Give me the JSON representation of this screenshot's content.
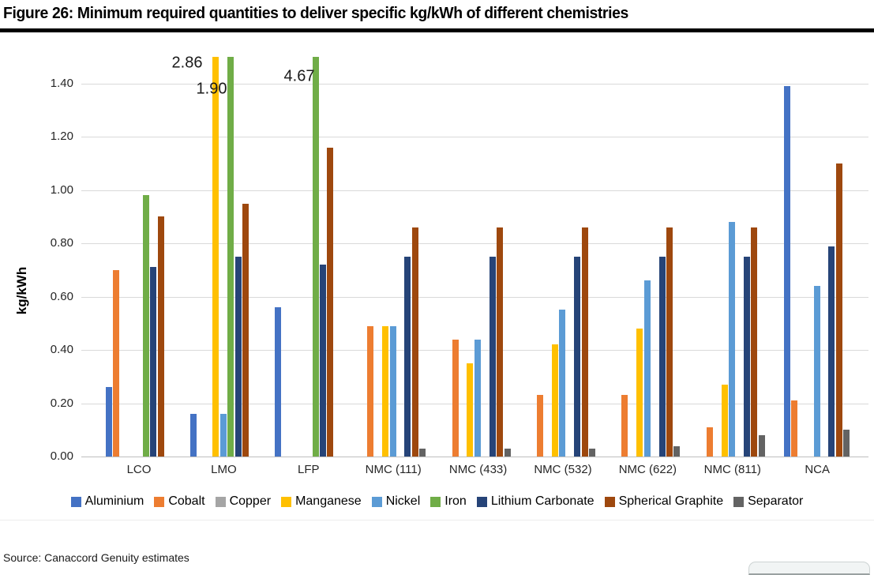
{
  "page": {
    "source": "Source: Canaccord Genuity estimates"
  },
  "chart_data": {
    "type": "bar",
    "title": "Figure 26: Minimum required quantities to deliver specific kg/kWh of different chemistries",
    "ylabel": "kg/kWh",
    "ylim": [
      0,
      1.5
    ],
    "grid": true,
    "legend_position": "bottom",
    "ytick_labels": [
      "0.00",
      "0.20",
      "0.40",
      "0.60",
      "0.80",
      "1.00",
      "1.20",
      "1.40"
    ],
    "categories": [
      "LCO",
      "LMO",
      "LFP",
      "NMC (111)",
      "NMC (433)",
      "NMC (532)",
      "NMC (622)",
      "NMC (811)",
      "NCA"
    ],
    "series": [
      {
        "name": "Aluminium",
        "color": "#4472C4",
        "values": [
          0.26,
          0.16,
          0.56,
          0,
          0,
          0,
          0,
          0,
          1.39
        ]
      },
      {
        "name": "Cobalt",
        "color": "#ED7D31",
        "values": [
          0.7,
          0,
          0,
          0.49,
          0.44,
          0.23,
          0.23,
          0.11,
          0.21
        ]
      },
      {
        "name": "Copper",
        "color": "#A5A5A5",
        "values": [
          0,
          0,
          0,
          0,
          0,
          0,
          0,
          0,
          0
        ]
      },
      {
        "name": "Manganese",
        "color": "#FFC000",
        "values": [
          0,
          2.86,
          0,
          0.49,
          0.35,
          0.42,
          0.48,
          0.27,
          0
        ]
      },
      {
        "name": "Nickel",
        "color": "#5B9BD5",
        "values": [
          0,
          0.16,
          0,
          0.49,
          0.44,
          0.55,
          0.66,
          0.88,
          0.64
        ]
      },
      {
        "name": "Iron",
        "color": "#70AD47",
        "values": [
          0.98,
          1.9,
          4.67,
          0,
          0,
          0,
          0,
          0,
          0
        ]
      },
      {
        "name": "Lithium Carbonate",
        "color": "#264478",
        "values": [
          0.71,
          0.75,
          0.72,
          0.75,
          0.75,
          0.75,
          0.75,
          0.75,
          0.79
        ]
      },
      {
        "name": "Spherical Graphite",
        "color": "#9E480E",
        "values": [
          0.9,
          0.95,
          1.16,
          0.86,
          0.86,
          0.86,
          0.86,
          0.86,
          1.1
        ]
      },
      {
        "name": "Separator",
        "color": "#636363",
        "values": [
          0,
          0,
          0,
          0.03,
          0.03,
          0.03,
          0.04,
          0.08,
          0.1
        ]
      }
    ],
    "annotations": [
      {
        "text": "2.86",
        "target_series": "Manganese",
        "target_category": "LMO",
        "x": 237,
        "y": 80
      },
      {
        "text": "1.90",
        "target_series": "Iron",
        "target_category": "LMO",
        "x": 268,
        "y": 113
      },
      {
        "text": "4.67",
        "target_series": "Iron",
        "target_category": "LFP",
        "x": 379,
        "y": 97
      }
    ]
  }
}
